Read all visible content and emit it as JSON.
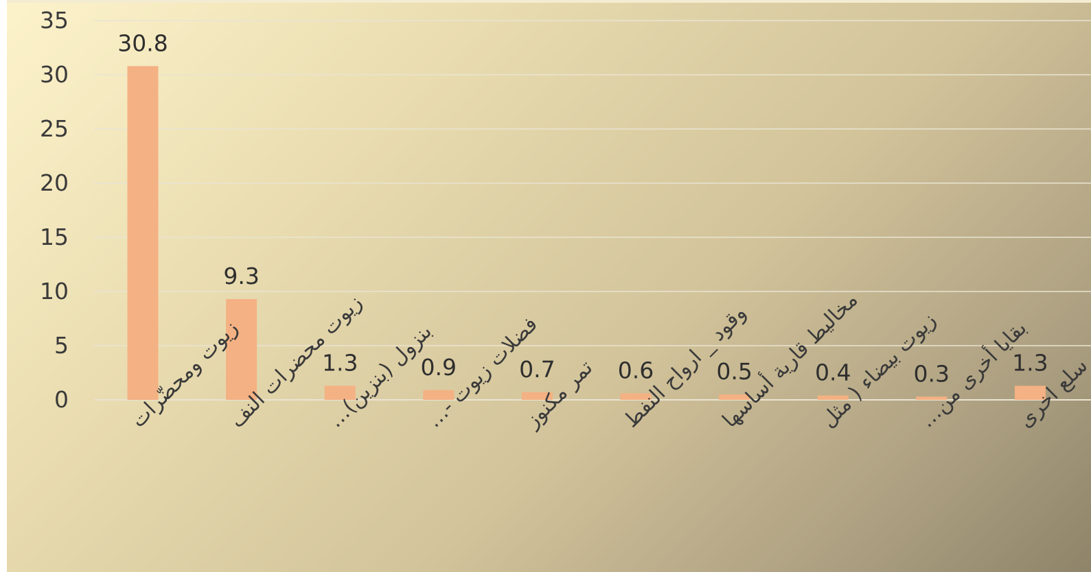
{
  "chart_data": {
    "type": "bar",
    "categories": [
      "زيوت ومحضّرات",
      "زيوت محضرات النف",
      "بنزول (بنزين)…",
      "فضلات زيوت -…",
      "تمر مكنوز",
      "وقود _ ارواح النفط",
      "مخاليط قارية أساسها",
      "زيوت بيضاء ( مثل",
      "بقايا أخرى من…",
      "سلع اخرى"
    ],
    "values": [
      30.8,
      9.3,
      1.3,
      0.9,
      0.7,
      0.6,
      0.5,
      0.4,
      0.3,
      1.3
    ],
    "data_labels": [
      "30.8",
      "9.3",
      "1.3",
      "0.9",
      "0.7",
      "0.6",
      "0.5",
      "0.4",
      "0.3",
      "1.3"
    ],
    "yticks": [
      "0",
      "5",
      "10",
      "15",
      "20",
      "25",
      "30",
      "35"
    ],
    "ylim": [
      0,
      35
    ],
    "title": "",
    "xlabel": "",
    "ylabel": "",
    "grid": true,
    "colors": {
      "bar": "#f4b183",
      "grid": "#e9e4d2",
      "text": "#3a3a3a"
    }
  }
}
